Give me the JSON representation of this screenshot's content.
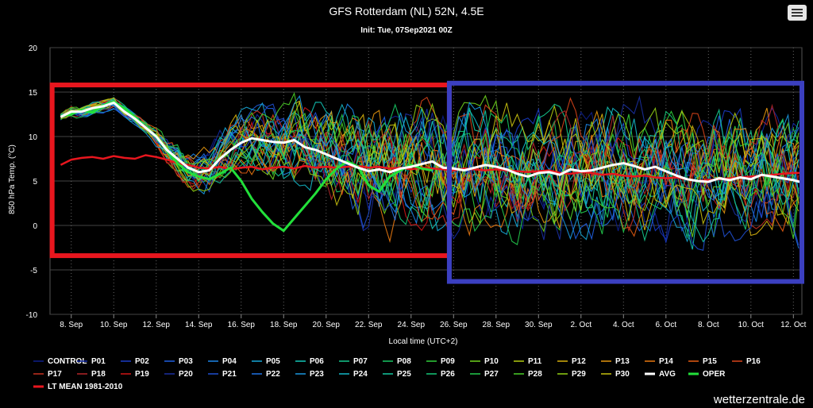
{
  "menu": {
    "icon": "hamburger-menu-icon"
  },
  "credit": "wetterzentrale.de",
  "chart_data": {
    "type": "line",
    "title": "GFS Rotterdam (NL) 52N, 4.5E",
    "subtitle": "Init: Tue, 07Sep2021 00Z",
    "xlabel": "Local time (UTC+2)",
    "ylabel": "850 hPa Temp. (°C)",
    "ylim": [
      -10,
      20
    ],
    "yticks": [
      -10,
      -5,
      0,
      5,
      10,
      15,
      20
    ],
    "xlim": [
      7.0,
      42.4
    ],
    "xticks": [
      {
        "label": "8. Sep",
        "day": 8
      },
      {
        "label": "10. Sep",
        "day": 10
      },
      {
        "label": "12. Sep",
        "day": 12
      },
      {
        "label": "14. Sep",
        "day": 14
      },
      {
        "label": "16. Sep",
        "day": 16
      },
      {
        "label": "18. Sep",
        "day": 18
      },
      {
        "label": "20. Sep",
        "day": 20
      },
      {
        "label": "22. Sep",
        "day": 22
      },
      {
        "label": "24. Sep",
        "day": 24
      },
      {
        "label": "26. Sep",
        "day": 26
      },
      {
        "label": "28. Sep",
        "day": 28
      },
      {
        "label": "30. Sep",
        "day": 30
      },
      {
        "label": "2. Oct",
        "day": 32
      },
      {
        "label": "4. Oct",
        "day": 34
      },
      {
        "label": "6. Oct",
        "day": 36
      },
      {
        "label": "8. Oct",
        "day": 38
      },
      {
        "label": "10. Oct",
        "day": 40
      },
      {
        "label": "12. Oct",
        "day": 42
      }
    ],
    "grid": true,
    "legend_placement": "bottom",
    "ensemble_colors": [
      "#0d1f8a",
      "#132aa6",
      "#1a3cc6",
      "#1f5fe0",
      "#1c86e8",
      "#16a9d8",
      "#13c7b8",
      "#14c98e",
      "#17c764",
      "#2fcf3a",
      "#6fd21e",
      "#b4cc10",
      "#d7b10c",
      "#e3950d",
      "#e8780f",
      "#e75c12",
      "#d9441a",
      "#c73021",
      "#b42528",
      "#d01515"
    ],
    "ensemble": {
      "start_day": 7.5,
      "end_day": 42.3,
      "step_days": 0.25,
      "min_value": -6,
      "max_value": 17
    },
    "avg": {
      "name": "AVG",
      "color": "#ffffff",
      "points": [
        [
          7.5,
          12.2
        ],
        [
          8,
          12.8
        ],
        [
          8.5,
          12.8
        ],
        [
          9,
          13.2
        ],
        [
          9.5,
          13.4
        ],
        [
          10,
          13.8
        ],
        [
          10.5,
          12.8
        ],
        [
          11,
          12
        ],
        [
          11.5,
          11
        ],
        [
          12,
          10
        ],
        [
          12.5,
          8.5
        ],
        [
          13,
          7.5
        ],
        [
          13.5,
          6.5
        ],
        [
          14,
          6
        ],
        [
          14.5,
          6.2
        ],
        [
          15,
          7.5
        ],
        [
          15.5,
          8.5
        ],
        [
          16,
          9.3
        ],
        [
          16.5,
          9.8
        ],
        [
          17,
          9.6
        ],
        [
          17.5,
          9.4
        ],
        [
          18,
          9.3
        ],
        [
          18.5,
          9.6
        ],
        [
          19,
          8.8
        ],
        [
          19.5,
          8.5
        ],
        [
          20,
          8
        ],
        [
          20.5,
          7.5
        ],
        [
          21,
          7
        ],
        [
          21.5,
          6.5
        ],
        [
          22,
          6.1
        ],
        [
          22.5,
          6.3
        ],
        [
          23,
          6
        ],
        [
          23.5,
          6.4
        ],
        [
          24,
          6.6
        ],
        [
          24.5,
          6.9
        ],
        [
          25,
          7.2
        ],
        [
          25.5,
          6.5
        ],
        [
          26,
          6.4
        ],
        [
          26.5,
          6.2
        ],
        [
          27,
          6.5
        ],
        [
          27.5,
          6.8
        ],
        [
          28,
          6.6
        ],
        [
          28.5,
          6.3
        ],
        [
          29,
          5.8
        ],
        [
          29.5,
          5.5
        ],
        [
          30,
          5.9
        ],
        [
          30.5,
          6
        ],
        [
          31,
          5.7
        ],
        [
          31.5,
          6.3
        ],
        [
          32,
          6.1
        ],
        [
          32.5,
          6.2
        ],
        [
          33,
          6.5
        ],
        [
          33.5,
          6.8
        ],
        [
          34,
          7
        ],
        [
          34.5,
          6.7
        ],
        [
          35,
          6.3
        ],
        [
          35.5,
          6.6
        ],
        [
          36,
          6.1
        ],
        [
          36.5,
          5.6
        ],
        [
          37,
          5.2
        ],
        [
          37.5,
          5
        ],
        [
          38,
          4.9
        ],
        [
          38.5,
          5.3
        ],
        [
          39,
          5.1
        ],
        [
          39.5,
          5.4
        ],
        [
          40,
          5.2
        ],
        [
          40.5,
          5.7
        ],
        [
          41,
          5.5
        ],
        [
          41.5,
          5.3
        ],
        [
          42,
          5.1
        ],
        [
          42.3,
          4.9
        ]
      ]
    },
    "oper": {
      "name": "OPER",
      "color": "#22e03a",
      "points": [
        [
          7.5,
          12.3
        ],
        [
          8,
          12.5
        ],
        [
          8.5,
          13
        ],
        [
          9,
          12.7
        ],
        [
          9.5,
          13.5
        ],
        [
          10,
          13.9
        ],
        [
          10.5,
          13.2
        ],
        [
          11,
          12.2
        ],
        [
          11.5,
          11
        ],
        [
          12,
          10
        ],
        [
          12.5,
          8.5
        ],
        [
          13,
          7
        ],
        [
          13.5,
          6
        ],
        [
          14,
          5.5
        ],
        [
          14.5,
          5.2
        ],
        [
          15,
          5.8
        ],
        [
          15.5,
          6.5
        ],
        [
          16,
          5
        ],
        [
          16.5,
          3
        ],
        [
          17,
          1.5
        ],
        [
          17.5,
          0.2
        ],
        [
          18,
          -0.6
        ],
        [
          18.5,
          0.8
        ],
        [
          19,
          2.2
        ],
        [
          19.5,
          3.6
        ],
        [
          20,
          5.2
        ],
        [
          20.5,
          6.4
        ],
        [
          21,
          7.2
        ],
        [
          21.5,
          6.6
        ],
        [
          22,
          4.5
        ],
        [
          22.5,
          3.8
        ],
        [
          23,
          5.5
        ],
        [
          23.5,
          6.2
        ],
        [
          24,
          6.8
        ],
        [
          24.5,
          6.4
        ],
        [
          25,
          6.2
        ]
      ]
    },
    "ltmean": {
      "name": "LT MEAN 1981-2010",
      "color": "#e8161e",
      "points": [
        [
          7.5,
          6.8
        ],
        [
          8,
          7.4
        ],
        [
          8.5,
          7.6
        ],
        [
          9,
          7.7
        ],
        [
          9.5,
          7.5
        ],
        [
          10,
          7.8
        ],
        [
          10.5,
          7.6
        ],
        [
          11,
          7.5
        ],
        [
          11.5,
          7.9
        ],
        [
          12,
          7.7
        ],
        [
          12.5,
          7.4
        ],
        [
          13,
          7
        ],
        [
          13.5,
          6.8
        ],
        [
          14,
          6.5
        ],
        [
          14.5,
          6.4
        ],
        [
          15,
          6.6
        ],
        [
          15.5,
          6.3
        ],
        [
          16,
          6.5
        ],
        [
          16.5,
          6.6
        ],
        [
          17,
          6.3
        ],
        [
          17.5,
          6.5
        ],
        [
          18,
          6.6
        ],
        [
          18.5,
          6.4
        ],
        [
          19,
          6.7
        ],
        [
          19.5,
          6.5
        ],
        [
          20,
          6.6
        ],
        [
          20.5,
          6.5
        ],
        [
          21,
          6.6
        ],
        [
          21.5,
          6.7
        ],
        [
          22,
          6.5
        ],
        [
          22.5,
          6.6
        ],
        [
          23,
          6.4
        ],
        [
          23.5,
          6.5
        ],
        [
          24,
          6.3
        ],
        [
          24.5,
          6.5
        ],
        [
          25,
          6.4
        ],
        [
          25.5,
          6.3
        ],
        [
          26,
          6.2
        ],
        [
          26.5,
          6.4
        ],
        [
          27,
          6.3
        ],
        [
          27.5,
          6.2
        ],
        [
          28,
          6.3
        ],
        [
          28.5,
          6.2
        ],
        [
          29,
          6.1
        ],
        [
          29.5,
          6
        ],
        [
          30,
          6.1
        ],
        [
          30.5,
          6.2
        ],
        [
          31,
          5.9
        ],
        [
          31.5,
          5.8
        ],
        [
          32,
          6
        ],
        [
          32.5,
          5.9
        ],
        [
          33,
          5.7
        ],
        [
          33.5,
          5.8
        ],
        [
          34,
          5.6
        ],
        [
          34.5,
          5.5
        ],
        [
          35,
          5.6
        ],
        [
          35.5,
          5.4
        ],
        [
          36,
          5.3
        ],
        [
          36.5,
          5.4
        ],
        [
          37,
          5.2
        ],
        [
          37.5,
          5
        ],
        [
          38,
          5.1
        ],
        [
          38.5,
          5.2
        ],
        [
          39,
          5.3
        ],
        [
          39.5,
          5.4
        ],
        [
          40,
          5.5
        ],
        [
          40.5,
          5.6
        ],
        [
          41,
          5.7
        ],
        [
          41.5,
          5.8
        ],
        [
          42,
          5.9
        ],
        [
          42.3,
          5.9
        ]
      ]
    },
    "legend": [
      {
        "label": "CONTROL",
        "color": "#0d1f8a"
      },
      {
        "label": "P01",
        "color": "#132aa6"
      },
      {
        "label": "P02",
        "color": "#1a3cc6"
      },
      {
        "label": "P03",
        "color": "#1f5fe0"
      },
      {
        "label": "P04",
        "color": "#1c86e8"
      },
      {
        "label": "P05",
        "color": "#16a9d8"
      },
      {
        "label": "P06",
        "color": "#13c7b8"
      },
      {
        "label": "P07",
        "color": "#14c98e"
      },
      {
        "label": "P08",
        "color": "#17c764"
      },
      {
        "label": "P09",
        "color": "#2fcf3a"
      },
      {
        "label": "P10",
        "color": "#6fd21e"
      },
      {
        "label": "P11",
        "color": "#b4cc10"
      },
      {
        "label": "P12",
        "color": "#d7b10c"
      },
      {
        "label": "P13",
        "color": "#e3950d"
      },
      {
        "label": "P14",
        "color": "#e8780f"
      },
      {
        "label": "P15",
        "color": "#e75c12"
      },
      {
        "label": "P16",
        "color": "#d9441a"
      },
      {
        "label": "P17",
        "color": "#c73021"
      },
      {
        "label": "P18",
        "color": "#b42528"
      },
      {
        "label": "P19",
        "color": "#d01515"
      },
      {
        "label": "P20",
        "color": "#1a2fa0"
      },
      {
        "label": "P21",
        "color": "#1f4fd0"
      },
      {
        "label": "P22",
        "color": "#1f72e6"
      },
      {
        "label": "P23",
        "color": "#1a98e0"
      },
      {
        "label": "P24",
        "color": "#14b8c8"
      },
      {
        "label": "P25",
        "color": "#14c8a0"
      },
      {
        "label": "P26",
        "color": "#15c878"
      },
      {
        "label": "P27",
        "color": "#22cb4c"
      },
      {
        "label": "P28",
        "color": "#4ad028"
      },
      {
        "label": "P29",
        "color": "#92d014"
      },
      {
        "label": "P30",
        "color": "#c6c00e"
      },
      {
        "label": "AVG",
        "color": "#ffffff"
      },
      {
        "label": "OPER",
        "color": "#22e03a"
      },
      {
        "label": "LT MEAN 1981-2010",
        "color": "#e8161e"
      }
    ],
    "highlights": [
      {
        "day_from": 7.1,
        "day_to": 25.8,
        "y_from": -3.4,
        "y_to": 15.8,
        "color": "#e8161e"
      },
      {
        "day_from": 25.8,
        "day_to": 42.4,
        "y_from": -6.3,
        "y_to": 16.0,
        "color": "#3b3fc0"
      }
    ]
  }
}
